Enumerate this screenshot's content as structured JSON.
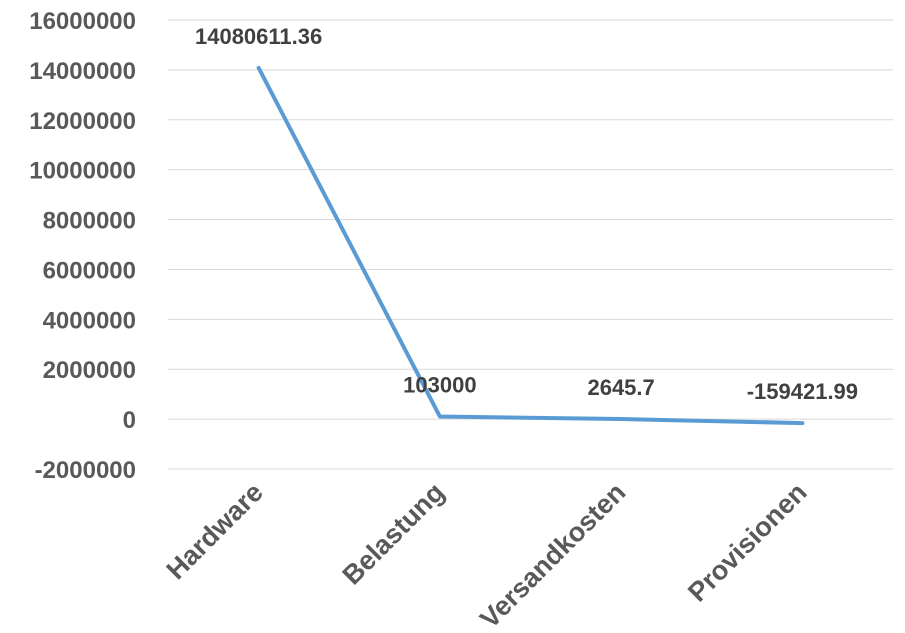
{
  "chart_data": {
    "type": "line",
    "title": "",
    "xlabel": "",
    "ylabel": "",
    "categories": [
      "Hardware",
      "Belastung",
      "Versandkosten",
      "Provisionen"
    ],
    "series": [
      {
        "values": [
          14080611.36,
          103000,
          2645.7,
          -159421.99
        ],
        "color": "#5b9bd5"
      }
    ],
    "data_labels": [
      "14080611.36",
      "103000",
      "2645.7",
      "-159421.99"
    ],
    "ylim": [
      -2000000,
      16000000
    ],
    "y_ticks": [
      16000000,
      14000000,
      12000000,
      10000000,
      8000000,
      6000000,
      4000000,
      2000000,
      0,
      -2000000
    ],
    "y_tick_labels": [
      "16000000",
      "14000000",
      "12000000",
      "10000000",
      "8000000",
      "6000000",
      "4000000",
      "2000000",
      "0",
      "-2000000"
    ],
    "grid": true,
    "legend": "none"
  }
}
